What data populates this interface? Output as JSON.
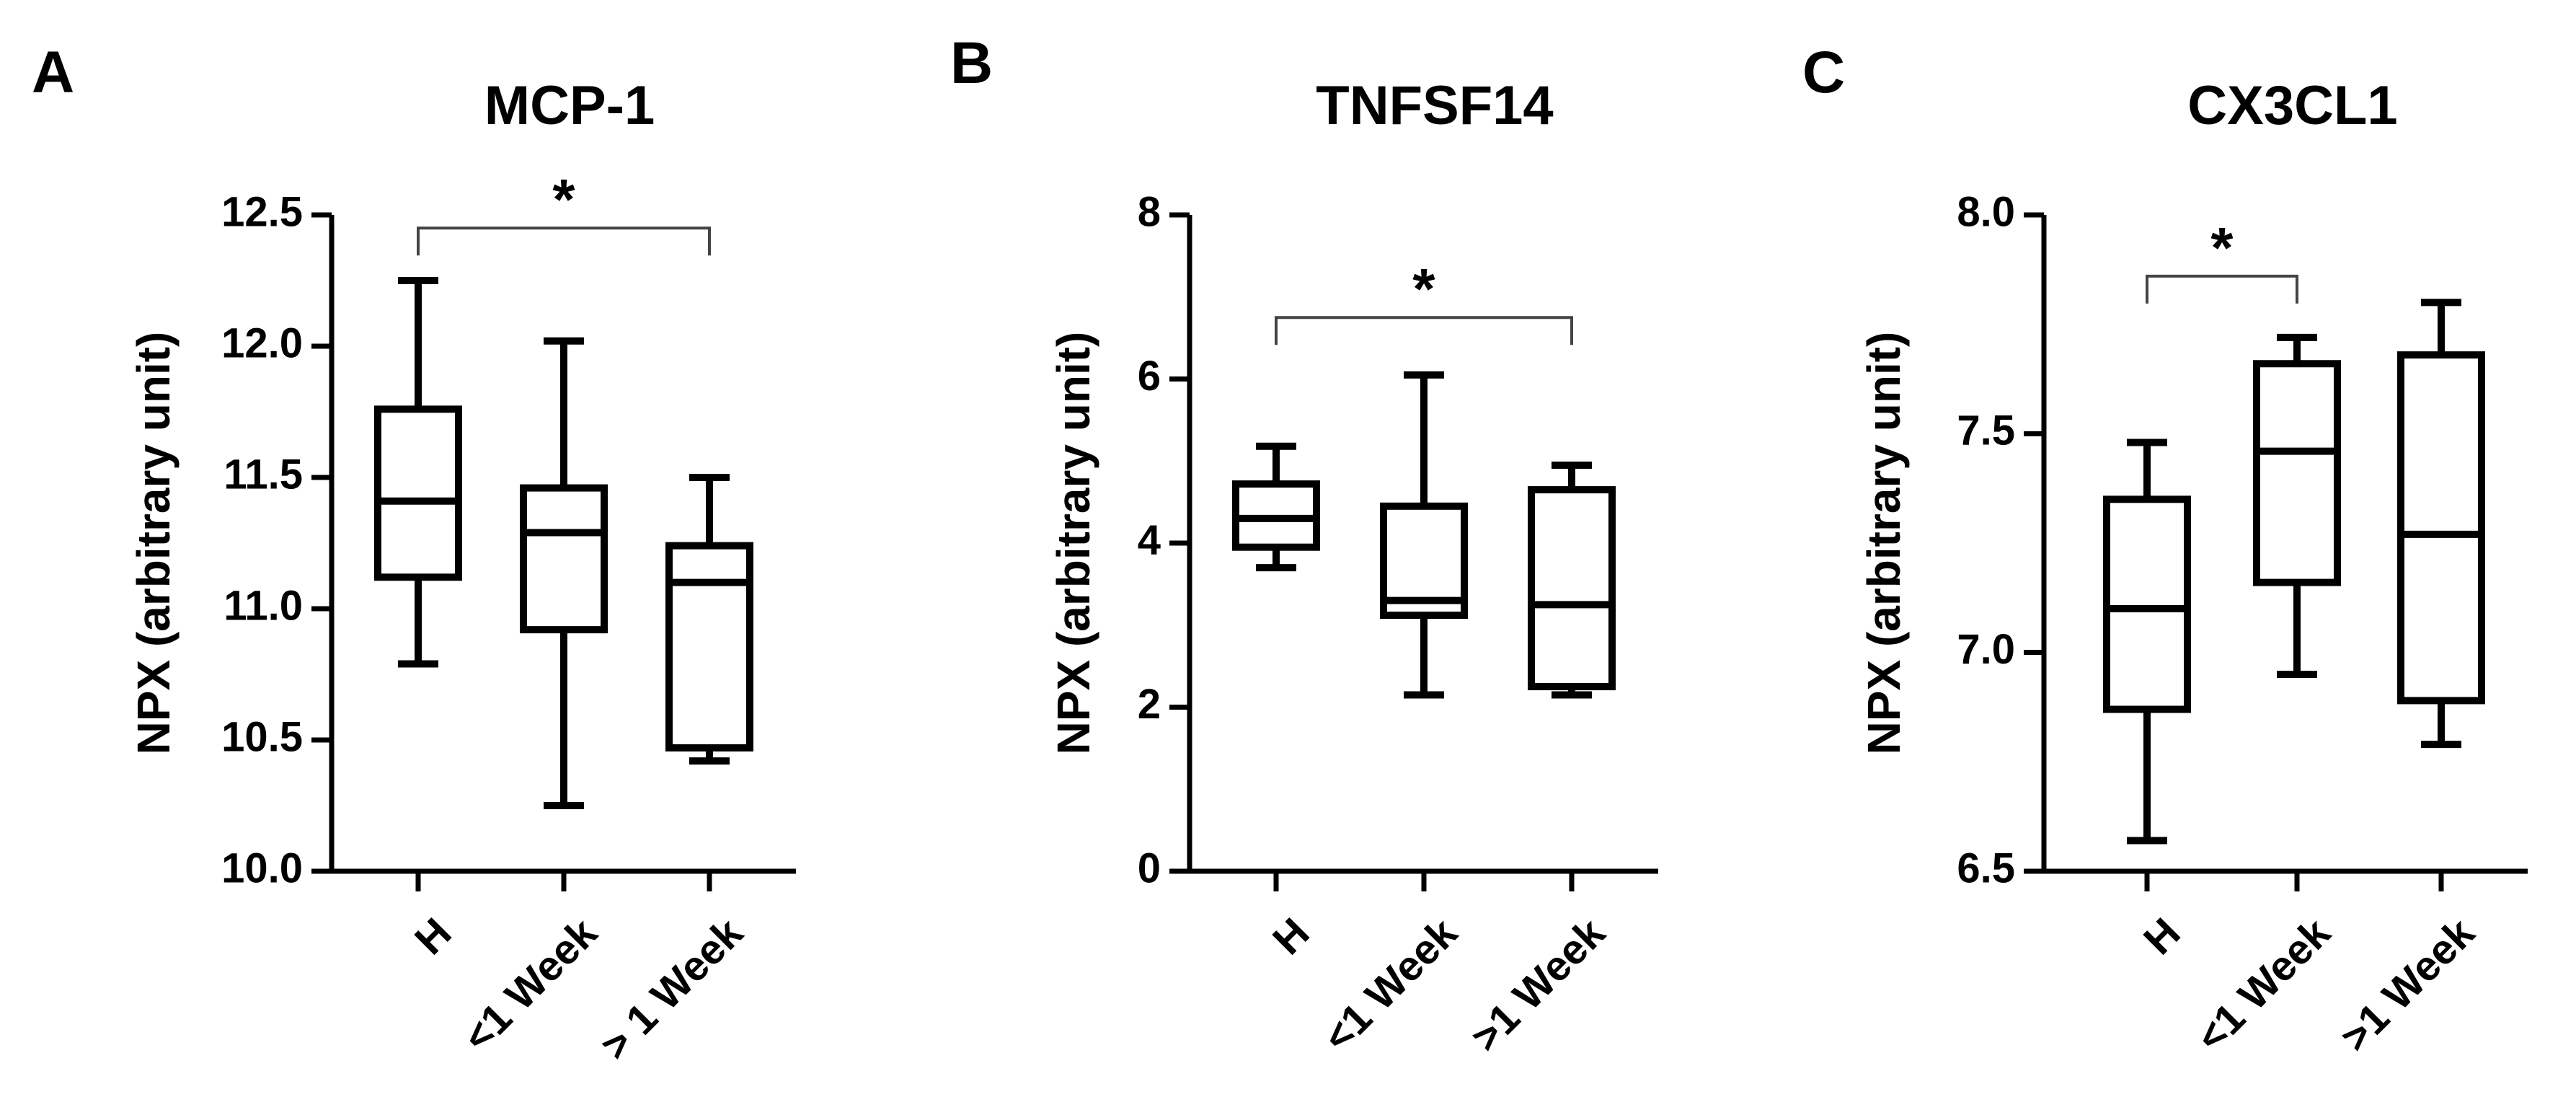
{
  "chart_data": [
    {
      "type": "box",
      "panel_label": "A",
      "title": "MCP-1",
      "ylabel": "NPX (arbitrary unit)",
      "xlabel": "",
      "ylim": [
        10.0,
        12.5
      ],
      "yticks": [
        "10.0",
        "10.5",
        "11.0",
        "11.5",
        "12.0",
        "12.5"
      ],
      "categories": [
        "H",
        "<1 Week",
        "> 1 Week"
      ],
      "boxes": [
        {
          "category": "H",
          "min": 10.79,
          "q1": 11.12,
          "median": 11.41,
          "q3": 11.76,
          "max": 12.25
        },
        {
          "category": "<1 Week",
          "min": 10.25,
          "q1": 10.92,
          "median": 11.29,
          "q3": 11.46,
          "max": 12.02
        },
        {
          "category": "> 1 Week",
          "min": 10.42,
          "q1": 10.47,
          "median": 11.1,
          "q3": 11.24,
          "max": 11.5
        }
      ],
      "significance": [
        {
          "from": "H",
          "to": "> 1 Week",
          "label": "*",
          "bracket_y": 12.45
        }
      ]
    },
    {
      "type": "box",
      "panel_label": "B",
      "title": "TNFSF14",
      "ylabel": "NPX (arbitrary unit)",
      "xlabel": "",
      "ylim": [
        0,
        8
      ],
      "yticks": [
        "0",
        "2",
        "4",
        "6",
        "8"
      ],
      "categories": [
        "H",
        "<1 Week",
        ">1 Week"
      ],
      "boxes": [
        {
          "category": "H",
          "min": 3.7,
          "q1": 3.95,
          "median": 4.3,
          "q3": 4.72,
          "max": 5.18
        },
        {
          "category": "<1 Week",
          "min": 2.15,
          "q1": 3.12,
          "median": 3.3,
          "q3": 4.45,
          "max": 6.05
        },
        {
          "category": ">1 Week",
          "min": 2.15,
          "q1": 2.25,
          "median": 3.25,
          "q3": 4.65,
          "max": 4.95
        }
      ],
      "significance": [
        {
          "from": "H",
          "to": ">1 Week",
          "label": "*",
          "bracket_y": 6.75
        }
      ]
    },
    {
      "type": "box",
      "panel_label": "C",
      "title": "CX3CL1",
      "ylabel": "NPX (arbitrary unit)",
      "xlabel": "",
      "ylim": [
        6.5,
        8.0
      ],
      "yticks": [
        "6.5",
        "7.0",
        "7.5",
        "8.0"
      ],
      "categories": [
        "H",
        "<1 Week",
        ">1 Week"
      ],
      "boxes": [
        {
          "category": "H",
          "min": 6.57,
          "q1": 6.87,
          "median": 7.1,
          "q3": 7.35,
          "max": 7.48
        },
        {
          "category": "<1 Week",
          "min": 6.95,
          "q1": 7.16,
          "median": 7.46,
          "q3": 7.66,
          "max": 7.72
        },
        {
          "category": ">1 Week",
          "min": 6.79,
          "q1": 6.89,
          "median": 7.27,
          "q3": 7.68,
          "max": 7.8
        }
      ],
      "significance": [
        {
          "from": "H",
          "to": "<1 Week",
          "label": "*",
          "bracket_y": 7.86
        }
      ]
    }
  ]
}
